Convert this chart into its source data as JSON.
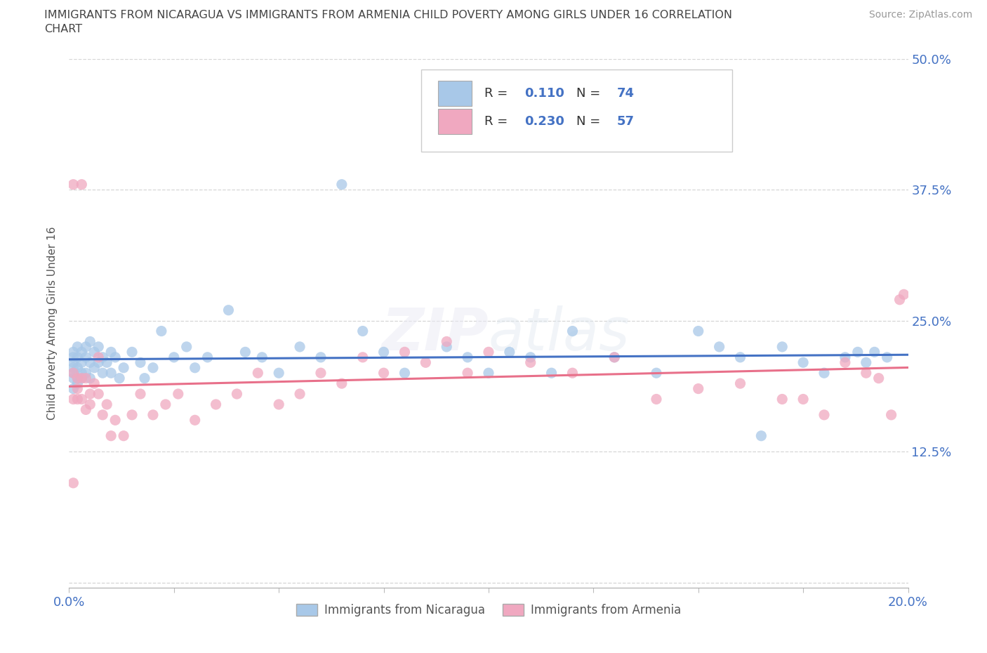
{
  "title_line1": "IMMIGRANTS FROM NICARAGUA VS IMMIGRANTS FROM ARMENIA CHILD POVERTY AMONG GIRLS UNDER 16 CORRELATION",
  "title_line2": "CHART",
  "source": "Source: ZipAtlas.com",
  "ylabel": "Child Poverty Among Girls Under 16",
  "xlim": [
    0.0,
    0.2
  ],
  "ylim": [
    -0.005,
    0.5
  ],
  "yticks": [
    0.0,
    0.125,
    0.25,
    0.375,
    0.5
  ],
  "ytick_labels": [
    "",
    "12.5%",
    "25.0%",
    "37.5%",
    "50.0%"
  ],
  "xticks": [
    0.0,
    0.025,
    0.05,
    0.075,
    0.1,
    0.125,
    0.15,
    0.175,
    0.2
  ],
  "xtick_labels": [
    "0.0%",
    "",
    "",
    "",
    "",
    "",
    "",
    "",
    "20.0%"
  ],
  "nicaragua_color": "#A8C8E8",
  "armenia_color": "#F0A8C0",
  "nicaragua_line_color": "#4472C4",
  "armenia_line_color": "#E8708A",
  "nicaragua_R": 0.11,
  "nicaragua_N": 74,
  "armenia_R": 0.23,
  "armenia_N": 57,
  "watermark": "ZIPatlas",
  "legend_R_color": "#4472C4",
  "legend_R_value_nic": "0.110",
  "legend_R_value_arm": "0.230",
  "legend_N_nic": "74",
  "legend_N_arm": "57",
  "nic_x": [
    0.001,
    0.001,
    0.001,
    0.001,
    0.001,
    0.001,
    0.001,
    0.002,
    0.002,
    0.002,
    0.002,
    0.002,
    0.003,
    0.003,
    0.003,
    0.003,
    0.004,
    0.004,
    0.004,
    0.005,
    0.005,
    0.005,
    0.006,
    0.006,
    0.007,
    0.007,
    0.008,
    0.008,
    0.009,
    0.01,
    0.01,
    0.011,
    0.012,
    0.013,
    0.015,
    0.017,
    0.018,
    0.02,
    0.022,
    0.025,
    0.028,
    0.03,
    0.033,
    0.038,
    0.042,
    0.046,
    0.05,
    0.055,
    0.06,
    0.065,
    0.07,
    0.075,
    0.08,
    0.09,
    0.095,
    0.1,
    0.105,
    0.11,
    0.115,
    0.12,
    0.13,
    0.14,
    0.15,
    0.155,
    0.16,
    0.165,
    0.17,
    0.175,
    0.18,
    0.185,
    0.188,
    0.19,
    0.192,
    0.195
  ],
  "nic_y": [
    0.2,
    0.21,
    0.195,
    0.22,
    0.185,
    0.205,
    0.215,
    0.195,
    0.225,
    0.205,
    0.215,
    0.19,
    0.2,
    0.22,
    0.21,
    0.195,
    0.215,
    0.225,
    0.2,
    0.23,
    0.21,
    0.195,
    0.22,
    0.205,
    0.21,
    0.225,
    0.215,
    0.2,
    0.21,
    0.22,
    0.2,
    0.215,
    0.195,
    0.205,
    0.22,
    0.21,
    0.195,
    0.205,
    0.24,
    0.215,
    0.225,
    0.205,
    0.215,
    0.26,
    0.22,
    0.215,
    0.2,
    0.225,
    0.215,
    0.38,
    0.24,
    0.22,
    0.2,
    0.225,
    0.215,
    0.2,
    0.22,
    0.215,
    0.2,
    0.24,
    0.215,
    0.2,
    0.24,
    0.225,
    0.215,
    0.14,
    0.225,
    0.21,
    0.2,
    0.215,
    0.22,
    0.21,
    0.22,
    0.215
  ],
  "arm_x": [
    0.001,
    0.001,
    0.001,
    0.001,
    0.002,
    0.002,
    0.002,
    0.003,
    0.003,
    0.003,
    0.004,
    0.004,
    0.005,
    0.005,
    0.006,
    0.007,
    0.007,
    0.008,
    0.009,
    0.01,
    0.011,
    0.013,
    0.015,
    0.017,
    0.02,
    0.023,
    0.026,
    0.03,
    0.035,
    0.04,
    0.045,
    0.05,
    0.055,
    0.06,
    0.065,
    0.07,
    0.075,
    0.08,
    0.085,
    0.09,
    0.095,
    0.1,
    0.11,
    0.12,
    0.13,
    0.14,
    0.15,
    0.16,
    0.17,
    0.175,
    0.18,
    0.185,
    0.19,
    0.193,
    0.196,
    0.198,
    0.199
  ],
  "arm_y": [
    0.2,
    0.38,
    0.175,
    0.095,
    0.195,
    0.185,
    0.175,
    0.38,
    0.195,
    0.175,
    0.195,
    0.165,
    0.18,
    0.17,
    0.19,
    0.215,
    0.18,
    0.16,
    0.17,
    0.14,
    0.155,
    0.14,
    0.16,
    0.18,
    0.16,
    0.17,
    0.18,
    0.155,
    0.17,
    0.18,
    0.2,
    0.17,
    0.18,
    0.2,
    0.19,
    0.215,
    0.2,
    0.22,
    0.21,
    0.23,
    0.2,
    0.22,
    0.21,
    0.2,
    0.215,
    0.175,
    0.185,
    0.19,
    0.175,
    0.175,
    0.16,
    0.21,
    0.2,
    0.195,
    0.16,
    0.27,
    0.275
  ]
}
